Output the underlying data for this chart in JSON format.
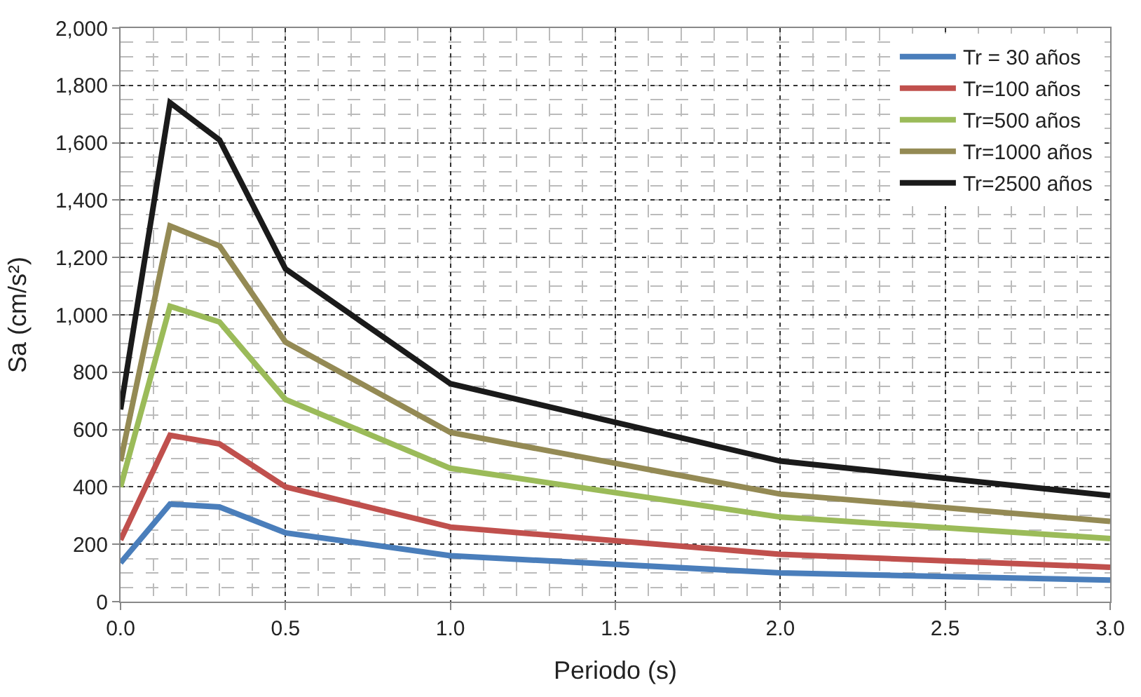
{
  "chart_data": {
    "type": "line",
    "xlabel": "Periodo (s)",
    "ylabel": "Sa (cm/s²)",
    "x": [
      0,
      0.15,
      0.3,
      0.5,
      1.0,
      2.0,
      3.0
    ],
    "series": [
      {
        "name": "Tr = 30 años",
        "color": "#4a7ebb",
        "values": [
          135,
          340,
          330,
          240,
          160,
          100,
          75
        ]
      },
      {
        "name": "Tr=100 años",
        "color": "#c0504d",
        "values": [
          215,
          580,
          550,
          400,
          260,
          165,
          120
        ]
      },
      {
        "name": "Tr=500 años",
        "color": "#9bbb59",
        "values": [
          400,
          1030,
          975,
          705,
          465,
          295,
          220
        ]
      },
      {
        "name": "Tr=1000 años",
        "color": "#948a54",
        "values": [
          490,
          1310,
          1240,
          905,
          590,
          375,
          280
        ]
      },
      {
        "name": "Tr=2500 años",
        "color": "#1a1a1a",
        "values": [
          670,
          1740,
          1610,
          1160,
          760,
          490,
          370
        ]
      }
    ],
    "xlim": [
      0,
      3.0
    ],
    "xticks": [
      {
        "value": 0,
        "label": "0.0"
      },
      {
        "value": 0.5,
        "label": "0.5"
      },
      {
        "value": 1.0,
        "label": "1.0"
      },
      {
        "value": 1.5,
        "label": "1.5"
      },
      {
        "value": 2.0,
        "label": "2.0"
      },
      {
        "value": 2.5,
        "label": "2.5"
      },
      {
        "value": 3.0,
        "label": "3.0"
      }
    ],
    "ylim": [
      0,
      2000
    ],
    "yticks": [
      0,
      200,
      400,
      600,
      800,
      {
        "value": 1000,
        "label": "1,000"
      },
      {
        "value": 1200,
        "label": "1,200"
      },
      {
        "value": 1400,
        "label": "1,400"
      },
      {
        "value": 1600,
        "label": "1,600"
      },
      {
        "value": 1800,
        "label": "1,800"
      },
      {
        "value": 2000,
        "label": "2,000"
      }
    ],
    "grid": true,
    "legend": "top right",
    "marker": "none",
    "line_style": "solid"
  }
}
